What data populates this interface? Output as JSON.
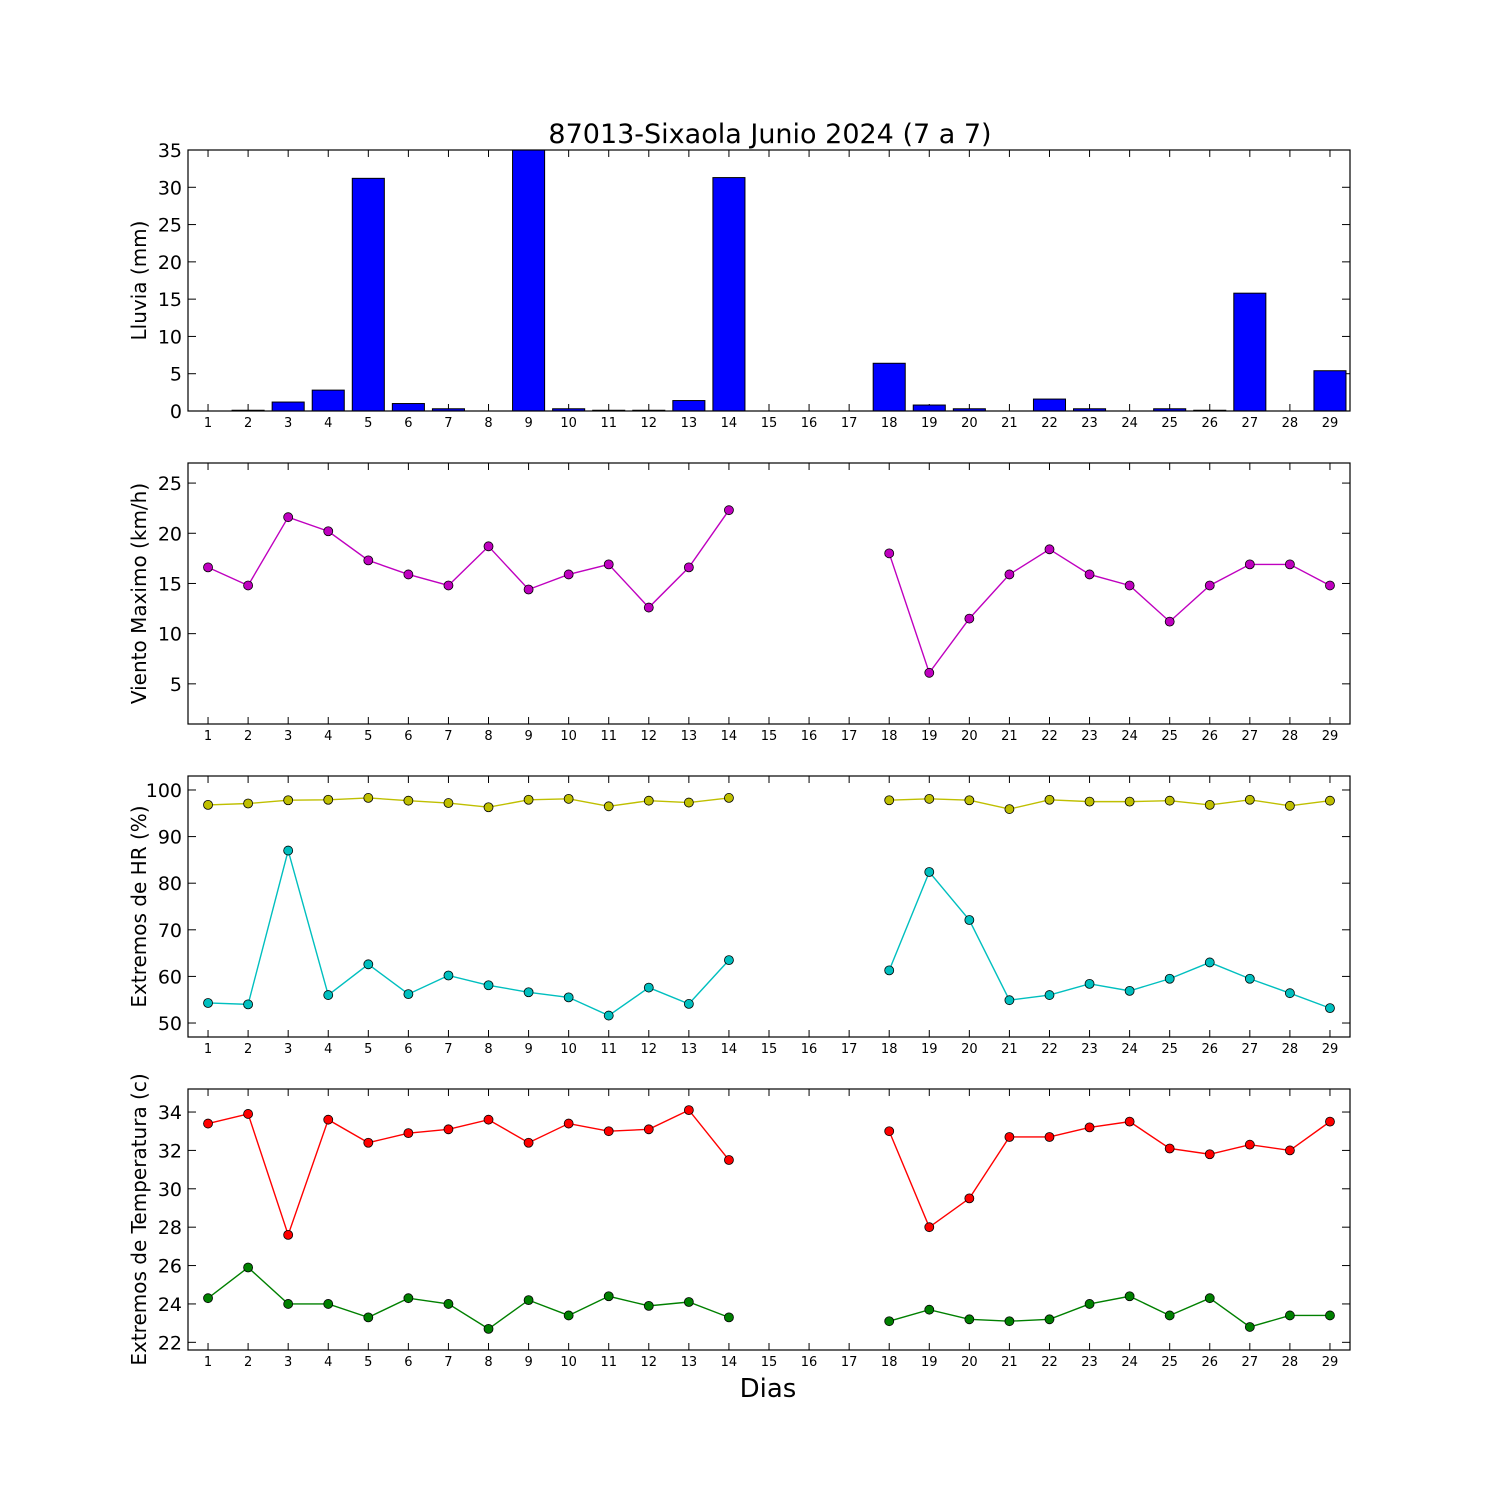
{
  "title": "87013-Sixaola Junio 2024  (7 a 7)",
  "xlabel": "Dias",
  "chart_data": [
    {
      "type": "bar",
      "ylabel": "Lluvia (mm)",
      "ylim": [
        0,
        35
      ],
      "yticks": [
        0,
        5,
        10,
        15,
        20,
        25,
        30,
        35
      ],
      "x": [
        1,
        2,
        3,
        4,
        5,
        6,
        7,
        8,
        9,
        10,
        11,
        12,
        13,
        14,
        15,
        16,
        17,
        18,
        19,
        20,
        21,
        22,
        23,
        24,
        25,
        26,
        27,
        28,
        29
      ],
      "series": [
        {
          "color": "#0000ff",
          "values": [
            0,
            0.1,
            1.2,
            2.8,
            31.2,
            1.0,
            0.3,
            0,
            35.0,
            0.3,
            0.1,
            0.1,
            1.4,
            31.3,
            0,
            0,
            0,
            6.4,
            0.8,
            0.3,
            0,
            1.6,
            0.3,
            0,
            0.3,
            0.1,
            15.8,
            0,
            5.4
          ]
        }
      ]
    },
    {
      "type": "line",
      "ylabel": "Viento Maximo (km/h)",
      "ylim": [
        1,
        27
      ],
      "yticks": [
        5,
        10,
        15,
        20,
        25
      ],
      "x": [
        1,
        2,
        3,
        4,
        5,
        6,
        7,
        8,
        9,
        10,
        11,
        12,
        13,
        14,
        15,
        16,
        17,
        18,
        19,
        20,
        21,
        22,
        23,
        24,
        25,
        26,
        27,
        28,
        29
      ],
      "series": [
        {
          "color": "#bf00bf",
          "values": [
            16.6,
            14.8,
            21.6,
            20.2,
            17.3,
            15.9,
            14.8,
            18.7,
            14.4,
            15.9,
            16.9,
            12.6,
            16.6,
            22.3,
            null,
            null,
            null,
            18.0,
            6.1,
            11.5,
            15.9,
            18.4,
            15.9,
            14.8,
            11.2,
            14.8,
            16.9,
            16.9,
            14.8
          ]
        }
      ]
    },
    {
      "type": "line",
      "ylabel": "Extremos de HR (%)",
      "ylim": [
        47,
        103
      ],
      "yticks": [
        50,
        60,
        70,
        80,
        90,
        100
      ],
      "x": [
        1,
        2,
        3,
        4,
        5,
        6,
        7,
        8,
        9,
        10,
        11,
        12,
        13,
        14,
        15,
        16,
        17,
        18,
        19,
        20,
        21,
        22,
        23,
        24,
        25,
        26,
        27,
        28,
        29
      ],
      "series": [
        {
          "color": "#bfbf00",
          "values": [
            96.8,
            97.1,
            97.8,
            97.9,
            98.3,
            97.7,
            97.2,
            96.3,
            97.9,
            98.1,
            96.5,
            97.7,
            97.3,
            98.3,
            null,
            null,
            null,
            97.8,
            98.1,
            97.8,
            95.9,
            97.9,
            97.5,
            97.5,
            97.7,
            96.8,
            97.9,
            96.6,
            97.7
          ]
        },
        {
          "color": "#00bfbf",
          "values": [
            54.3,
            54.0,
            87.0,
            56.0,
            62.6,
            56.2,
            60.2,
            58.1,
            56.6,
            55.5,
            51.6,
            57.6,
            54.1,
            63.5,
            null,
            null,
            null,
            61.3,
            82.4,
            72.1,
            54.9,
            56.0,
            58.4,
            56.9,
            59.5,
            63.0,
            59.5,
            56.4,
            53.2
          ]
        }
      ]
    },
    {
      "type": "line",
      "ylabel": "Extremos de Temperatura (c)",
      "ylim": [
        21.6,
        35.2
      ],
      "yticks": [
        22,
        24,
        26,
        28,
        30,
        32,
        34
      ],
      "x": [
        1,
        2,
        3,
        4,
        5,
        6,
        7,
        8,
        9,
        10,
        11,
        12,
        13,
        14,
        15,
        16,
        17,
        18,
        19,
        20,
        21,
        22,
        23,
        24,
        25,
        26,
        27,
        28,
        29
      ],
      "series": [
        {
          "color": "#ff0000",
          "values": [
            33.4,
            33.9,
            27.6,
            33.6,
            32.4,
            32.9,
            33.1,
            33.6,
            32.4,
            33.4,
            33.0,
            33.1,
            34.1,
            31.5,
            null,
            null,
            null,
            33.0,
            28.0,
            29.5,
            32.7,
            32.7,
            33.2,
            33.5,
            32.1,
            31.8,
            32.3,
            32.0,
            33.5
          ]
        },
        {
          "color": "#008000",
          "values": [
            24.3,
            25.9,
            24.0,
            24.0,
            23.3,
            24.3,
            24.0,
            22.7,
            24.2,
            23.4,
            24.4,
            23.9,
            24.1,
            23.3,
            null,
            null,
            null,
            23.1,
            23.7,
            23.2,
            23.1,
            23.2,
            24.0,
            24.4,
            23.4,
            24.3,
            22.8,
            23.4,
            23.4
          ]
        }
      ]
    }
  ]
}
